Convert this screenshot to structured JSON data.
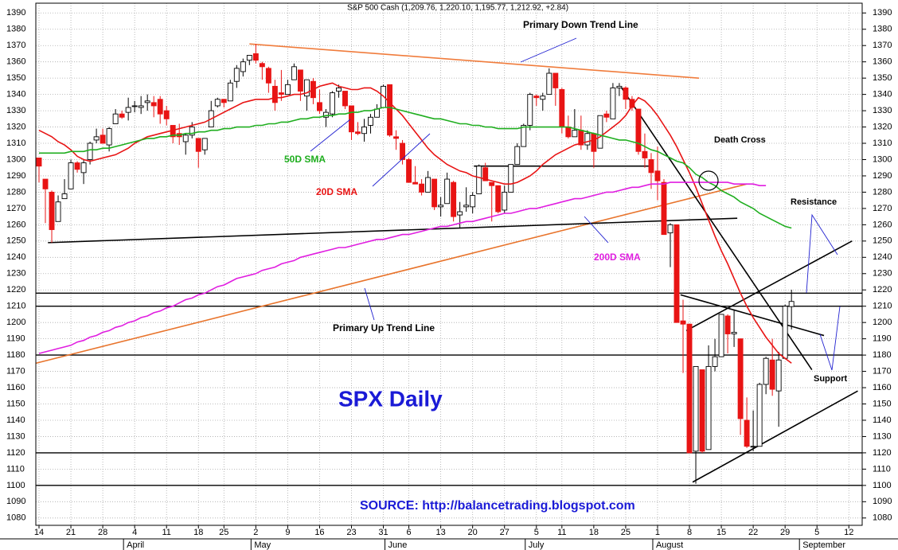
{
  "chart_data": {
    "type": "candlestick",
    "title": "S&P 500 Cash (1,209.76, 1,220.10, 1,195.77, 1,212.92, +2.84)",
    "categories": [
      "14",
      null,
      null,
      null,
      null,
      "21",
      null,
      null,
      null,
      null,
      "28",
      null,
      null,
      null,
      null,
      "4",
      null,
      null,
      null,
      null,
      "11",
      null,
      null,
      null,
      null,
      "18",
      null,
      null,
      null,
      "25",
      null,
      null,
      null,
      null,
      "2",
      null,
      null,
      null,
      null,
      "9",
      null,
      null,
      null,
      null,
      "16",
      null,
      null,
      null,
      null,
      "23",
      null,
      null,
      null,
      null,
      "31",
      null,
      null,
      null,
      "6",
      null,
      null,
      null,
      null,
      "13",
      null,
      null,
      null,
      null,
      "20",
      null,
      null,
      null,
      null,
      "27",
      null,
      null,
      null,
      null,
      "5",
      null,
      null,
      null,
      "11",
      null,
      null,
      null,
      null,
      "18",
      null,
      null,
      null,
      null,
      "25",
      null,
      null,
      null,
      null,
      "1",
      null,
      null,
      null,
      null,
      "8",
      null,
      null,
      null,
      null,
      "15",
      null,
      null,
      null,
      null,
      "22",
      null,
      null,
      null,
      null,
      "29",
      null,
      null,
      null,
      null,
      "5",
      null,
      null,
      null,
      null,
      "12",
      null
    ],
    "months": [
      null,
      null,
      null,
      null,
      null,
      null,
      null,
      null,
      null,
      null,
      null,
      null,
      null,
      null,
      "April",
      null,
      null,
      null,
      null,
      null,
      null,
      null,
      null,
      null,
      null,
      null,
      null,
      null,
      null,
      null,
      null,
      null,
      null,
      null,
      "May",
      null,
      null,
      null,
      null,
      null,
      null,
      null,
      null,
      null,
      null,
      null,
      null,
      null,
      null,
      null,
      null,
      null,
      null,
      null,
      null,
      "June",
      null,
      null,
      null,
      null,
      null,
      null,
      null,
      null,
      null,
      null,
      null,
      null,
      null,
      null,
      null,
      null,
      null,
      null,
      null,
      null,
      null,
      "July",
      null,
      null,
      null,
      null,
      null,
      null,
      null,
      null,
      null,
      null,
      null,
      null,
      null,
      null,
      null,
      null,
      null,
      null,
      null,
      "August",
      null,
      null,
      null,
      null,
      null,
      null,
      null,
      null,
      null,
      null,
      null,
      null,
      null,
      null,
      null,
      null,
      null,
      null,
      null,
      null,
      null,
      null,
      "September",
      null,
      null,
      null,
      null,
      null,
      null,
      null,
      null
    ],
    "open": [
      1301,
      1288,
      1280,
      1262,
      1276,
      1282,
      1298,
      1292,
      1300,
      1312,
      1315,
      1309,
      1322,
      1328,
      1329,
      1333,
      1332,
      1335,
      1335,
      1337,
      1330,
      1321,
      1316,
      1311,
      1315,
      1313,
      1306,
      1320,
      1333,
      1337,
      1336,
      1348,
      1354,
      1361,
      1365,
      1359,
      1356,
      1345,
      1341,
      1340,
      1349,
      1355,
      1339,
      1348,
      1335,
      1326,
      1328,
      1342,
      1342,
      1333,
      1317,
      1316,
      1321,
      1326,
      1332,
      1346,
      1314,
      1310,
      1300,
      1286,
      1285,
      1280,
      1288,
      1271,
      1273,
      1286,
      1266,
      1271,
      1271,
      1279,
      1295,
      1286,
      1284,
      1269,
      1280,
      1297,
      1308,
      1321,
      1339,
      1337,
      1340,
      1353,
      1343,
      1320,
      1314,
      1318,
      1309,
      1316,
      1307,
      1328,
      1325,
      1344,
      1344,
      1337,
      1331,
      1305,
      1300,
      1293,
      1286,
      1255,
      1260,
      1201,
      1199,
      1121,
      1171,
      1122,
      1173,
      1179,
      1204,
      1193,
      1190,
      1140,
      1124,
      1124,
      1162,
      1177,
      1158,
      1178,
      1209.76,
      null,
      null,
      null,
      null,
      null,
      null,
      null,
      null,
      null,
      null
    ],
    "high": [
      1301,
      1288,
      1281,
      1278,
      1288,
      1300,
      1299,
      1300,
      1311,
      1319,
      1319,
      1320,
      1331,
      1330,
      1338,
      1336,
      1339,
      1340,
      1339,
      1339,
      1333,
      1321,
      1322,
      1316,
      1323,
      1313,
      1313,
      1336,
      1338,
      1337,
      1349,
      1358,
      1362,
      1364,
      1371,
      1360,
      1357,
      1349,
      1355,
      1349,
      1359,
      1355,
      1349,
      1350,
      1343,
      1331,
      1342,
      1346,
      1342,
      1333,
      1323,
      1325,
      1328,
      1334,
      1346,
      1346,
      1318,
      1312,
      1301,
      1296,
      1288,
      1293,
      1288,
      1277,
      1292,
      1287,
      1274,
      1283,
      1280,
      1297,
      1298,
      1286,
      1284,
      1284,
      1297,
      1310,
      1322,
      1341,
      1340,
      1341,
      1356,
      1353,
      1344,
      1327,
      1331,
      1327,
      1318,
      1316,
      1327,
      1330,
      1347,
      1347,
      1345,
      1339,
      1331,
      1316,
      1304,
      1308,
      1288,
      1261,
      1260,
      1214,
      1199,
      1173,
      1171,
      1186,
      1190,
      1205,
      1205,
      1208,
      1190,
      1154,
      1146,
      1163,
      1179,
      1190,
      1182,
      1211,
      1220.1,
      null,
      null,
      null,
      null,
      null,
      null,
      null,
      null,
      null,
      null
    ],
    "low": [
      1286,
      1261,
      1249,
      1262,
      1276,
      1282,
      1292,
      1285,
      1297,
      1310,
      1310,
      1305,
      1322,
      1325,
      1324,
      1329,
      1328,
      1330,
      1326,
      1322,
      1321,
      1310,
      1309,
      1303,
      1313,
      1295,
      1303,
      1320,
      1332,
      1332,
      1336,
      1344,
      1351,
      1358,
      1359,
      1349,
      1341,
      1330,
      1336,
      1340,
      1349,
      1336,
      1330,
      1334,
      1328,
      1320,
      1326,
      1338,
      1331,
      1312,
      1315,
      1311,
      1316,
      1326,
      1332,
      1314,
      1306,
      1297,
      1286,
      1285,
      1278,
      1280,
      1269,
      1265,
      1273,
      1262,
      1258,
      1268,
      1267,
      1279,
      1287,
      1262,
      1267,
      1267,
      1280,
      1297,
      1308,
      1318,
      1333,
      1330,
      1340,
      1333,
      1316,
      1313,
      1314,
      1306,
      1306,
      1295,
      1307,
      1323,
      1325,
      1339,
      1331,
      1330,
      1303,
      1295,
      1282,
      1275,
      1254,
      1234,
      1200,
      1169,
      1120,
      1101,
      1120,
      1122,
      1170,
      1179,
      1181,
      1185,
      1131,
      1123,
      1121,
      1124,
      1156,
      1155,
      1136,
      1178,
      1195.77,
      null,
      null,
      null,
      null,
      null,
      null,
      null,
      null,
      null,
      null
    ],
    "close": [
      1296,
      1282,
      1257,
      1274,
      1279,
      1298,
      1294,
      1298,
      1310,
      1314,
      1310,
      1319,
      1328,
      1326,
      1332,
      1333,
      1333,
      1336,
      1333,
      1328,
      1325,
      1314,
      1314,
      1315,
      1320,
      1305,
      1313,
      1330,
      1337,
      1335,
      1347,
      1356,
      1360,
      1364,
      1361,
      1357,
      1347,
      1335,
      1340,
      1346,
      1357,
      1342,
      1349,
      1338,
      1330,
      1329,
      1341,
      1344,
      1333,
      1317,
      1316,
      1320,
      1326,
      1331,
      1345,
      1315,
      1313,
      1300,
      1286,
      1285,
      1280,
      1289,
      1271,
      1272,
      1288,
      1265,
      1268,
      1272,
      1278,
      1296,
      1287,
      1284,
      1268,
      1280,
      1297,
      1308,
      1321,
      1340,
      1338,
      1339,
      1353,
      1344,
      1320,
      1314,
      1318,
      1309,
      1316,
      1305,
      1327,
      1326,
      1344,
      1345,
      1337,
      1332,
      1305,
      1301,
      1292,
      1287,
      1254,
      1260,
      1200,
      1199,
      1120,
      1173,
      1121,
      1173,
      1179,
      1205,
      1193,
      1194,
      1141,
      1124,
      1124,
      1162,
      1178,
      1159,
      1177,
      1210,
      1212.92,
      null,
      null,
      null,
      null,
      null,
      null,
      null,
      null,
      null,
      null
    ],
    "candle_colors": {
      "up": "#ffffff",
      "up_outline": "#000000",
      "down": "#e81414"
    },
    "series": [
      {
        "name": "20D SMA",
        "color": "#e81414",
        "values": [
          1318,
          1316,
          1314,
          1311,
          1309,
          1306,
          1302,
          1300,
          1299,
          1300,
          1301,
          1302,
          1303,
          1305,
          1307,
          1310,
          1312,
          1314,
          1315,
          1316,
          1317,
          1318,
          1319,
          1320,
          1321,
          1322,
          1323,
          1325,
          1327,
          1329,
          1331,
          1333,
          1335,
          1336,
          1337,
          1337,
          1337,
          1338,
          1338,
          1339,
          1340,
          1340,
          1341,
          1343,
          1345,
          1346,
          1347,
          1345,
          1344,
          1343,
          1343,
          1344,
          1344,
          1342,
          1339,
          1335,
          1331,
          1327,
          1322,
          1317,
          1312,
          1307,
          1303,
          1300,
          1297,
          1295,
          1293,
          1292,
          1290,
          1289,
          1288,
          1287,
          1286,
          1285,
          1285,
          1286,
          1288,
          1290,
          1293,
          1297,
          1300,
          1303,
          1305,
          1307,
          1309,
          1310,
          1311,
          1312,
          1314,
          1317,
          1320,
          1323,
          1327,
          1333,
          1338,
          1336,
          1332,
          1327,
          1321,
          1315,
          1308,
          1300,
          1292,
          1283,
          1273,
          1263,
          1253,
          1244,
          1236,
          1227,
          1218,
          1210,
          1203,
          1197,
          1191,
          1186,
          1181,
          1178,
          1175,
          null,
          null,
          null,
          null,
          null,
          null,
          null,
          null,
          null,
          null
        ]
      },
      {
        "name": "50D SMA",
        "color": "#1fae1f",
        "values": [
          1304,
          1304,
          1304,
          1304,
          1304,
          1305,
          1305,
          1305,
          1306,
          1306,
          1307,
          1307,
          1308,
          1309,
          1310,
          1311,
          1312,
          1313,
          1313,
          1314,
          1314,
          1315,
          1315,
          1316,
          1316,
          1317,
          1317,
          1318,
          1318,
          1319,
          1319,
          1320,
          1320,
          1320,
          1321,
          1321,
          1322,
          1322,
          1323,
          1323,
          1324,
          1325,
          1325,
          1326,
          1326,
          1327,
          1327,
          1328,
          1328,
          1329,
          1329,
          1330,
          1330,
          1331,
          1332,
          1332,
          1331,
          1330,
          1329,
          1328,
          1327,
          1326,
          1325,
          1325,
          1324,
          1323,
          1322,
          1322,
          1321,
          1321,
          1320,
          1320,
          1319,
          1319,
          1319,
          1319,
          1320,
          1320,
          1320,
          1320,
          1320,
          1320,
          1320,
          1320,
          1319,
          1318,
          1317,
          1316,
          1315,
          1314,
          1313,
          1312,
          1312,
          1311,
          1310,
          1308,
          1306,
          1305,
          1303,
          1301,
          1299,
          1298,
          1295,
          1291,
          1289,
          1286,
          1284,
          1281,
          1279,
          1277,
          1274,
          1272,
          1270,
          1267,
          1265,
          1263,
          1261,
          1259,
          1258,
          null,
          null,
          null,
          null,
          null,
          null,
          null,
          null,
          null,
          null
        ]
      },
      {
        "name": "200D SMA",
        "color": "#e01ee0",
        "values": [
          1181,
          1182,
          1183,
          1184,
          1185,
          1186,
          1188,
          1189,
          1191,
          1192,
          1194,
          1195,
          1197,
          1198,
          1200,
          1201,
          1203,
          1204,
          1206,
          1207,
          1209,
          1210,
          1212,
          1214,
          1215,
          1217,
          1218,
          1220,
          1222,
          1223,
          1225,
          1227,
          1228,
          1229,
          1230,
          1232,
          1233,
          1234,
          1236,
          1237,
          1238,
          1240,
          1241,
          1242,
          1243,
          1244,
          1245,
          1246,
          1246,
          1247,
          1248,
          1249,
          1250,
          1251,
          1251,
          1252,
          1253,
          1254,
          1254,
          1255,
          1256,
          1257,
          1258,
          1259,
          1259,
          1260,
          1261,
          1262,
          1262,
          1263,
          1264,
          1265,
          1266,
          1267,
          1267,
          1268,
          1269,
          1270,
          1270,
          1271,
          1272,
          1273,
          1274,
          1275,
          1276,
          1276,
          1277,
          1278,
          1279,
          1280,
          1280,
          1281,
          1282,
          1283,
          1283,
          1284,
          1285,
          1285,
          1285,
          1286,
          1286,
          1286,
          1286,
          1286,
          1286,
          1286,
          1286,
          1286,
          1286,
          1285,
          1285,
          1285,
          1285,
          1284,
          1284,
          null,
          null,
          null,
          null,
          null,
          null,
          null,
          null,
          null,
          null,
          null,
          null,
          null,
          null
        ]
      }
    ],
    "levels": [
      1218,
      1210,
      1180,
      1120,
      1100
    ],
    "trend_lines": [
      {
        "color": "#f07c3c",
        "x": [
          33,
          103.5
        ],
        "y": [
          1371,
          1350
        ]
      },
      {
        "color": "#e8742c",
        "x": [
          -0.5,
          111
        ],
        "y": [
          1175,
          1285
        ]
      },
      {
        "color": "#000000",
        "x": [
          1.4,
          109.5
        ],
        "y": [
          1249,
          1264
        ]
      },
      {
        "color": "#000000",
        "x": [
          68.2,
          95.6
        ],
        "y": [
          1296,
          1296
        ]
      },
      {
        "color": "#000000",
        "x": [
          91.2,
          121.2
        ],
        "y": [
          1345,
          1171
        ]
      },
      {
        "color": "#000000",
        "x": [
          100.6,
          123.1
        ],
        "y": [
          1217,
          1192
        ]
      },
      {
        "color": "#000000",
        "x": [
          101.5,
          127.5
        ],
        "y": [
          1195,
          1250
        ]
      },
      {
        "color": "#000000",
        "x": [
          102.5,
          128.4
        ],
        "y": [
          1102,
          1158
        ]
      }
    ],
    "ylim": [
      1075.5,
      1396
    ],
    "yticks": [
      1080,
      1090,
      1100,
      1110,
      1120,
      1130,
      1140,
      1150,
      1160,
      1170,
      1180,
      1190,
      1200,
      1210,
      1220,
      1230,
      1240,
      1250,
      1260,
      1270,
      1280,
      1290,
      1300,
      1310,
      1320,
      1330,
      1340,
      1350,
      1360,
      1370,
      1380,
      1390
    ],
    "grid": true,
    "annotations": {
      "down_trend": "Primary Down Trend Line",
      "up_trend": "Primary Up Trend Line",
      "death_cross": "Death Cross",
      "resistance": "Resistance",
      "support": "Support",
      "label": "SPX Daily",
      "source": "SOURCE: http://balancetrading.blogspot.com"
    }
  }
}
